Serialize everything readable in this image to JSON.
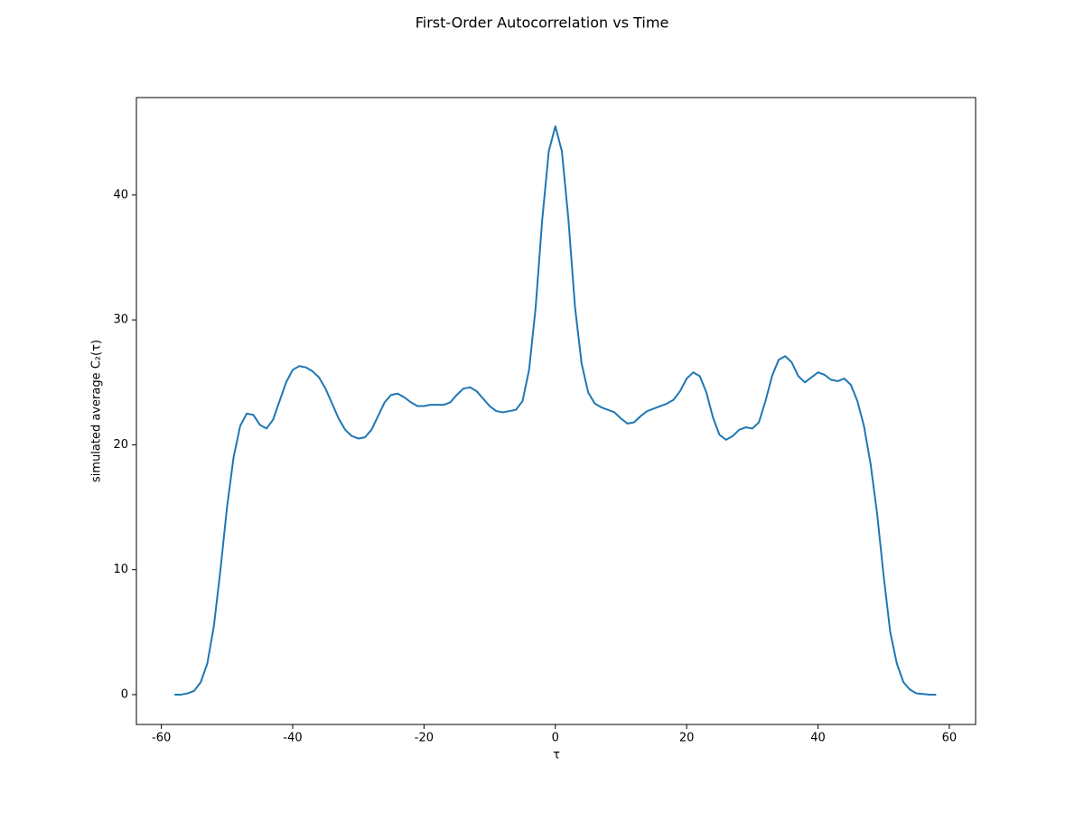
{
  "chart_data": {
    "type": "line",
    "title": "First-Order Autocorrelation vs Time",
    "xlabel": "τ",
    "ylabel": "simulated average C₂(τ)",
    "color": "#1f77b4",
    "x": [
      -58,
      -57,
      -56,
      -55,
      -54,
      -53,
      -52,
      -51,
      -50,
      -49,
      -48,
      -47,
      -46,
      -45,
      -44,
      -43,
      -42,
      -41,
      -40,
      -39,
      -38,
      -37,
      -36,
      -35,
      -34,
      -33,
      -32,
      -31,
      -30,
      -29,
      -28,
      -27,
      -26,
      -25,
      -24,
      -23,
      -22,
      -21,
      -20,
      -19,
      -18,
      -17,
      -16,
      -15,
      -14,
      -13,
      -12,
      -11,
      -10,
      -9,
      -8,
      -7,
      -6,
      -5,
      -4,
      -3,
      -2,
      -1,
      0,
      1,
      2,
      3,
      4,
      5,
      6,
      7,
      8,
      9,
      10,
      11,
      12,
      13,
      14,
      15,
      16,
      17,
      18,
      19,
      20,
      21,
      22,
      23,
      24,
      25,
      26,
      27,
      28,
      29,
      30,
      31,
      32,
      33,
      34,
      35,
      36,
      37,
      38,
      39,
      40,
      41,
      42,
      43,
      44,
      45,
      46,
      47,
      48,
      49,
      50,
      51,
      52,
      53,
      54,
      55,
      56,
      57,
      58
    ],
    "values": [
      0,
      0,
      0.1,
      0.3,
      1,
      2.5,
      5.5,
      10,
      15,
      19,
      21.5,
      22.5,
      22.4,
      21.6,
      21.3,
      22,
      23.5,
      25,
      26,
      26.3,
      26.2,
      25.9,
      25.4,
      24.5,
      23.3,
      22.1,
      21.2,
      20.7,
      20.5,
      20.6,
      21.2,
      22.3,
      23.4,
      24,
      24.1,
      23.8,
      23.4,
      23.1,
      23.1,
      23.2,
      23.2,
      23.2,
      23.4,
      24,
      24.5,
      24.6,
      24.3,
      23.7,
      23.1,
      22.7,
      22.6,
      22.7,
      22.8,
      23.5,
      26,
      31,
      38,
      43.5,
      45.5,
      43.5,
      38,
      31,
      26.5,
      24.2,
      23.3,
      23,
      22.8,
      22.6,
      22.1,
      21.7,
      21.8,
      22.3,
      22.7,
      22.9,
      23.1,
      23.3,
      23.6,
      24.3,
      25.3,
      25.8,
      25.5,
      24.2,
      22.2,
      20.8,
      20.4,
      20.7,
      21.2,
      21.4,
      21.3,
      21.8,
      23.5,
      25.5,
      26.8,
      27.1,
      26.6,
      25.5,
      25,
      25.4,
      25.8,
      25.6,
      25.2,
      25.1,
      25.3,
      24.8,
      23.5,
      21.5,
      18.5,
      14.5,
      9.5,
      5,
      2.5,
      1,
      0.4,
      0.1,
      0.05,
      0,
      0
    ],
    "xlim": [
      -63.8,
      64
    ],
    "ylim": [
      -2.39,
      47.8
    ],
    "xticks": [
      -60,
      -40,
      -20,
      0,
      20,
      40,
      60
    ],
    "yticks": [
      0,
      10,
      20,
      30,
      40
    ]
  }
}
